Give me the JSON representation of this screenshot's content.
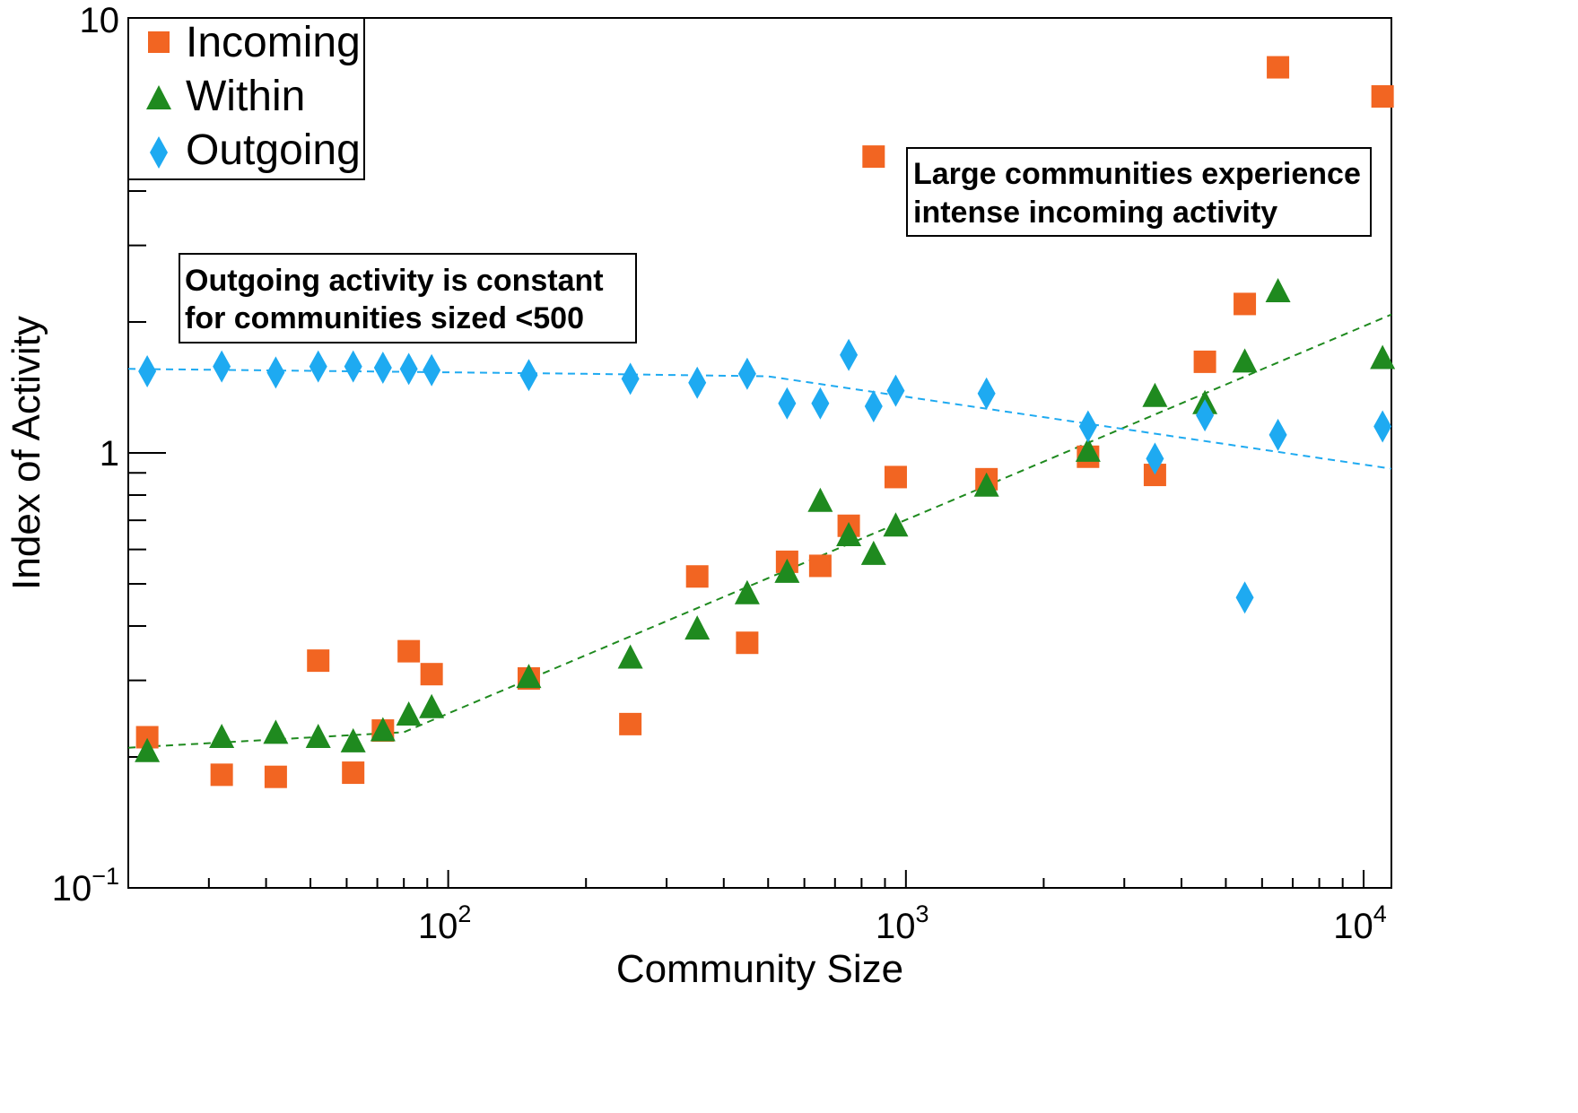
{
  "chart_data": {
    "type": "scatter",
    "title": "",
    "xlabel": "Community Size",
    "ylabel": "Index of Activity",
    "xscale": "log",
    "yscale": "log",
    "xlim": [
      20,
      11500
    ],
    "ylim": [
      0.1,
      10
    ],
    "grid": false,
    "legend_position": "top-left",
    "x_ticks": [
      {
        "base": "10",
        "exp": "2",
        "value": 100
      },
      {
        "base": "10",
        "exp": "3",
        "value": 1000
      },
      {
        "base": "10",
        "exp": "4",
        "value": 10000
      }
    ],
    "y_ticks": [
      {
        "base": "10",
        "exp": "−1",
        "value": 0.1
      },
      {
        "base": "1",
        "exp": "",
        "value": 1
      },
      {
        "base": "10",
        "exp": "",
        "value": 10
      }
    ],
    "series": [
      {
        "name": "Incoming",
        "color": "#f26522",
        "marker": "square",
        "points": [
          [
            22,
            0.222
          ],
          [
            32,
            0.182
          ],
          [
            42,
            0.18
          ],
          [
            52,
            0.333
          ],
          [
            62,
            0.184
          ],
          [
            72,
            0.23
          ],
          [
            82,
            0.35
          ],
          [
            92,
            0.31
          ],
          [
            150,
            0.303
          ],
          [
            250,
            0.238
          ],
          [
            350,
            0.52
          ],
          [
            450,
            0.366
          ],
          [
            550,
            0.562
          ],
          [
            650,
            0.55
          ],
          [
            750,
            0.68
          ],
          [
            850,
            4.8
          ],
          [
            950,
            0.88
          ],
          [
            1500,
            0.87
          ],
          [
            2500,
            0.98
          ],
          [
            3500,
            0.89
          ],
          [
            4500,
            1.62
          ],
          [
            5500,
            2.2
          ],
          [
            6500,
            7.7
          ],
          [
            11000,
            6.6
          ]
        ]
      },
      {
        "name": "Within",
        "color": "#1f8a1f",
        "marker": "triangle",
        "points": [
          [
            22,
            0.206
          ],
          [
            32,
            0.222
          ],
          [
            42,
            0.227
          ],
          [
            52,
            0.222
          ],
          [
            62,
            0.217
          ],
          [
            72,
            0.23
          ],
          [
            82,
            0.25
          ],
          [
            92,
            0.26
          ],
          [
            150,
            0.305
          ],
          [
            250,
            0.338
          ],
          [
            350,
            0.394
          ],
          [
            450,
            0.475
          ],
          [
            550,
            0.532
          ],
          [
            650,
            0.775
          ],
          [
            750,
            0.646
          ],
          [
            850,
            0.585
          ],
          [
            950,
            0.68
          ],
          [
            1500,
            0.84
          ],
          [
            2500,
            1.01
          ],
          [
            3500,
            1.35
          ],
          [
            4500,
            1.3
          ],
          [
            5500,
            1.62
          ],
          [
            6500,
            2.35
          ],
          [
            11000,
            1.65
          ]
        ]
      },
      {
        "name": "Outgoing",
        "color": "#1eaaf1",
        "marker": "diamond",
        "points": [
          [
            22,
            1.54
          ],
          [
            32,
            1.58
          ],
          [
            42,
            1.53
          ],
          [
            52,
            1.58
          ],
          [
            62,
            1.58
          ],
          [
            72,
            1.57
          ],
          [
            82,
            1.56
          ],
          [
            92,
            1.55
          ],
          [
            150,
            1.51
          ],
          [
            250,
            1.48
          ],
          [
            350,
            1.45
          ],
          [
            450,
            1.52
          ],
          [
            550,
            1.3
          ],
          [
            650,
            1.3
          ],
          [
            750,
            1.68
          ],
          [
            850,
            1.28
          ],
          [
            950,
            1.39
          ],
          [
            1500,
            1.37
          ],
          [
            2500,
            1.15
          ],
          [
            3500,
            0.97
          ],
          [
            4500,
            1.22
          ],
          [
            5500,
            0.465
          ],
          [
            6500,
            1.1
          ],
          [
            11000,
            1.15
          ]
        ]
      }
    ],
    "trend_lines": [
      {
        "series": "Within",
        "color": "#1f8a1f",
        "style": "dashed",
        "points": [
          [
            20,
            0.21
          ],
          [
            80,
            0.228
          ],
          [
            11500,
            2.08
          ]
        ]
      },
      {
        "series": "Outgoing",
        "color": "#1eaaf1",
        "style": "dashed",
        "points": [
          [
            20,
            1.56
          ],
          [
            200,
            1.52
          ],
          [
            500,
            1.5
          ],
          [
            11500,
            0.92
          ]
        ]
      }
    ],
    "annotations": [
      {
        "lines": [
          "Outgoing activity is constant",
          "for communities sized <500"
        ]
      },
      {
        "lines": [
          "Large communities experience",
          "intense incoming activity"
        ]
      }
    ]
  }
}
